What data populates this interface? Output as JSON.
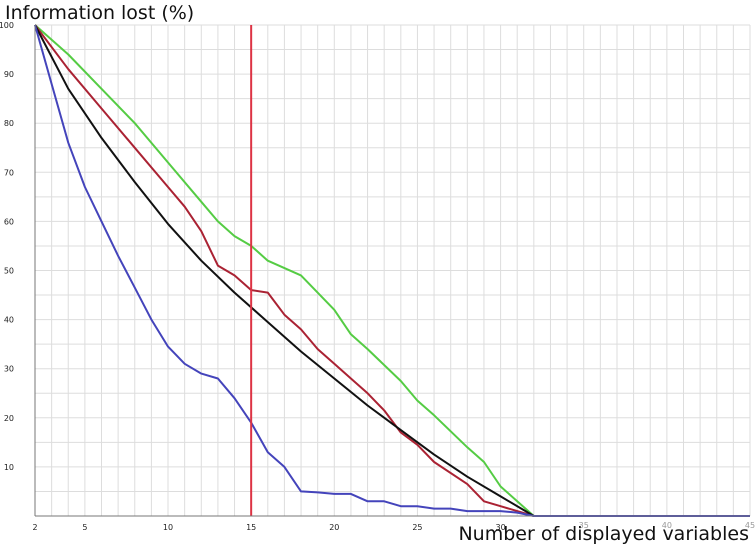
{
  "chart_data": {
    "type": "line",
    "title": "",
    "ylabel": "Information lost (%)",
    "xlabel": "Number of displayed variables",
    "xlim": [
      2,
      45
    ],
    "ylim": [
      0,
      100
    ],
    "x_ticks": [
      2,
      5,
      10,
      15,
      20,
      25,
      30,
      35,
      40,
      45
    ],
    "y_ticks": [
      10,
      20,
      30,
      40,
      50,
      60,
      70,
      80,
      90,
      100
    ],
    "grid": true,
    "vertical_marker": {
      "x": 15,
      "color": "#dd3344"
    },
    "series": [
      {
        "color": "#55cc44",
        "points": [
          [
            2,
            100
          ],
          [
            4,
            94
          ],
          [
            6,
            87
          ],
          [
            8,
            80
          ],
          [
            10,
            72
          ],
          [
            12,
            64
          ],
          [
            13,
            60
          ],
          [
            14,
            57
          ],
          [
            15,
            55
          ],
          [
            16,
            52
          ],
          [
            18,
            49
          ],
          [
            20,
            42
          ],
          [
            21,
            37
          ],
          [
            22,
            34
          ],
          [
            24,
            27.5
          ],
          [
            25,
            23.5
          ],
          [
            26,
            20.5
          ],
          [
            28,
            14
          ],
          [
            29,
            11
          ],
          [
            30,
            6
          ],
          [
            32,
            0
          ],
          [
            45,
            0
          ]
        ]
      },
      {
        "color": "#aa2233",
        "points": [
          [
            2,
            100
          ],
          [
            4,
            91
          ],
          [
            6,
            83
          ],
          [
            8,
            75
          ],
          [
            10,
            67
          ],
          [
            11,
            63
          ],
          [
            12,
            58
          ],
          [
            13,
            51
          ],
          [
            14,
            49
          ],
          [
            15,
            46
          ],
          [
            16,
            45.5
          ],
          [
            17,
            41
          ],
          [
            18,
            38
          ],
          [
            19,
            34
          ],
          [
            20,
            31
          ],
          [
            22,
            25
          ],
          [
            23,
            21.5
          ],
          [
            24,
            17
          ],
          [
            25,
            14.5
          ],
          [
            26,
            11
          ],
          [
            28,
            6.5
          ],
          [
            29,
            3
          ],
          [
            30,
            2
          ],
          [
            32,
            0
          ],
          [
            45,
            0
          ]
        ]
      },
      {
        "color": "#111111",
        "points": [
          [
            2,
            100
          ],
          [
            4,
            87
          ],
          [
            6,
            77
          ],
          [
            8,
            68
          ],
          [
            10,
            59.5
          ],
          [
            12,
            52
          ],
          [
            14,
            45.5
          ],
          [
            16,
            39.5
          ],
          [
            18,
            33.5
          ],
          [
            20,
            28
          ],
          [
            22,
            22.5
          ],
          [
            24,
            17.5
          ],
          [
            26,
            12.5
          ],
          [
            28,
            8
          ],
          [
            30,
            4
          ],
          [
            32,
            0
          ],
          [
            45,
            0
          ]
        ]
      },
      {
        "color": "#4444bb",
        "points": [
          [
            2,
            100
          ],
          [
            3,
            88
          ],
          [
            4,
            76
          ],
          [
            5,
            67
          ],
          [
            6,
            60
          ],
          [
            7,
            53
          ],
          [
            8,
            46.5
          ],
          [
            9,
            40
          ],
          [
            10,
            34.5
          ],
          [
            11,
            31
          ],
          [
            12,
            29
          ],
          [
            13,
            28
          ],
          [
            14,
            24
          ],
          [
            15,
            19
          ],
          [
            16,
            13
          ],
          [
            17,
            10
          ],
          [
            18,
            5
          ],
          [
            19,
            4.8
          ],
          [
            20,
            4.5
          ],
          [
            21,
            4.5
          ],
          [
            22,
            3
          ],
          [
            23,
            3
          ],
          [
            24,
            2
          ],
          [
            25,
            2
          ],
          [
            26,
            1.5
          ],
          [
            27,
            1.5
          ],
          [
            28,
            1
          ],
          [
            30,
            1
          ],
          [
            31,
            0.7
          ],
          [
            32,
            0
          ],
          [
            45,
            0
          ]
        ]
      }
    ]
  }
}
